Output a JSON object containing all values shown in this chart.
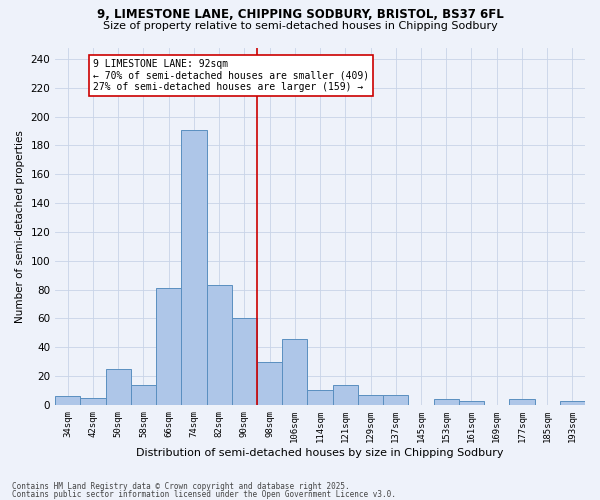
{
  "title1": "9, LIMESTONE LANE, CHIPPING SODBURY, BRISTOL, BS37 6FL",
  "title2": "Size of property relative to semi-detached houses in Chipping Sodbury",
  "xlabel": "Distribution of semi-detached houses by size in Chipping Sodbury",
  "ylabel": "Number of semi-detached properties",
  "footer1": "Contains HM Land Registry data © Crown copyright and database right 2025.",
  "footer2": "Contains public sector information licensed under the Open Government Licence v3.0.",
  "categories": [
    "34sqm",
    "42sqm",
    "50sqm",
    "58sqm",
    "66sqm",
    "74sqm",
    "82sqm",
    "90sqm",
    "98sqm",
    "106sqm",
    "114sqm",
    "121sqm",
    "129sqm",
    "137sqm",
    "145sqm",
    "153sqm",
    "161sqm",
    "169sqm",
    "177sqm",
    "185sqm",
    "193sqm"
  ],
  "values": [
    6,
    5,
    25,
    14,
    81,
    191,
    83,
    60,
    30,
    46,
    10,
    14,
    7,
    7,
    0,
    4,
    3,
    0,
    4,
    0,
    3
  ],
  "bar_color": "#aec6e8",
  "bar_edge_color": "#5a8fc0",
  "bar_edge_width": 0.7,
  "grid_color": "#c8d4e8",
  "bg_color": "#eef2fa",
  "red_line_x": 7.5,
  "red_line_color": "#cc0000",
  "annotation_line1": "9 LIMESTONE LANE: 92sqm",
  "annotation_line2": "← 70% of semi-detached houses are smaller (409)",
  "annotation_line3": "27% of semi-detached houses are larger (159) →",
  "annotation_box_color": "#ffffff",
  "annotation_border_color": "#cc0000",
  "ylim": [
    0,
    248
  ],
  "yticks": [
    0,
    20,
    40,
    60,
    80,
    100,
    120,
    140,
    160,
    180,
    200,
    220,
    240
  ],
  "title1_fontsize": 8.5,
  "title2_fontsize": 8.0,
  "ylabel_fontsize": 7.5,
  "xlabel_fontsize": 8.0,
  "ytick_fontsize": 7.5,
  "xtick_fontsize": 6.5,
  "annotation_fontsize": 7.0,
  "footer_fontsize": 5.5
}
